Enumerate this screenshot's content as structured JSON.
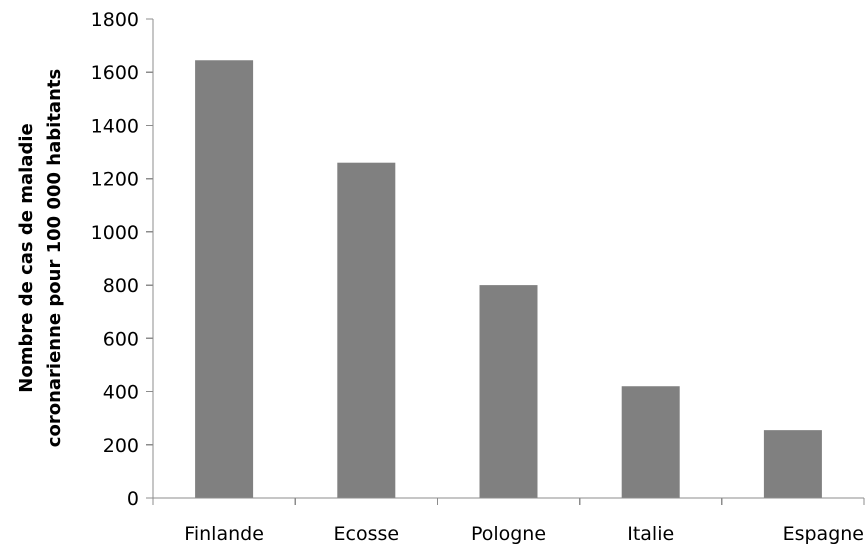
{
  "chart_data": {
    "type": "bar",
    "title": "",
    "xlabel": "",
    "ylabel_lines": [
      "Nombre de cas de maladie",
      "coronarienne pour 100 000 habitants"
    ],
    "categories": [
      "Finlande",
      "Ecosse",
      "Pologne",
      "Italie",
      "Espagne"
    ],
    "values": [
      1645,
      1260,
      800,
      420,
      255
    ],
    "ylim": [
      0,
      1800
    ],
    "yticks": [
      0,
      200,
      400,
      600,
      800,
      1000,
      1200,
      1400,
      1600,
      1800
    ],
    "grid": false,
    "legend": "none",
    "bar_color": "#808080",
    "axis_color": "#8c8c8c"
  }
}
